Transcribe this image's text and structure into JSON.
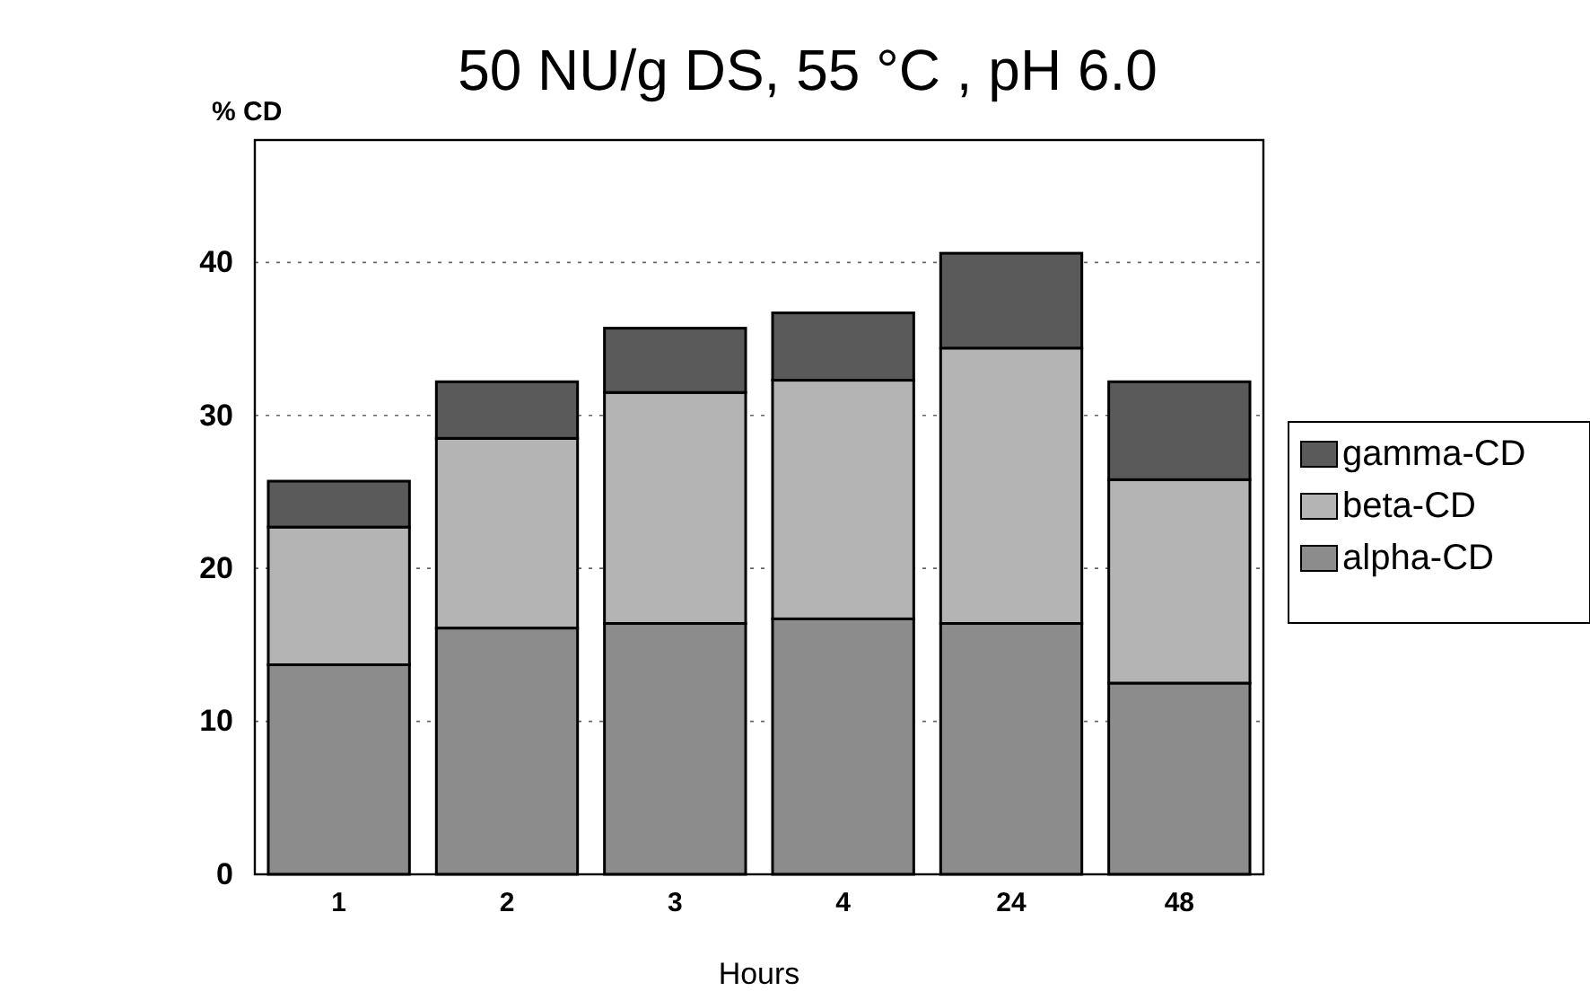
{
  "chart_data": {
    "type": "bar",
    "title": "50 NU/g DS, 55 °C , pH 6.0",
    "xlabel": "Hours",
    "ylabel": "% CD",
    "categories": [
      "1",
      "2",
      "3",
      "4",
      "24",
      "48"
    ],
    "stacked": true,
    "series": [
      {
        "name": "alpha-CD",
        "color": "#8c8c8c",
        "values": [
          13.7,
          16.1,
          16.4,
          16.7,
          16.4,
          12.5
        ]
      },
      {
        "name": "beta-CD",
        "color": "#b4b4b4",
        "values": [
          9.0,
          12.4,
          15.1,
          15.6,
          18.0,
          13.3
        ]
      },
      {
        "name": "gamma-CD",
        "color": "#5a5a5a",
        "values": [
          3.0,
          3.7,
          4.2,
          4.4,
          6.2,
          6.4
        ]
      }
    ],
    "ylim": [
      0,
      48
    ],
    "yticks": [
      0,
      10,
      20,
      30,
      40
    ],
    "grid": "y",
    "legend": "right"
  }
}
